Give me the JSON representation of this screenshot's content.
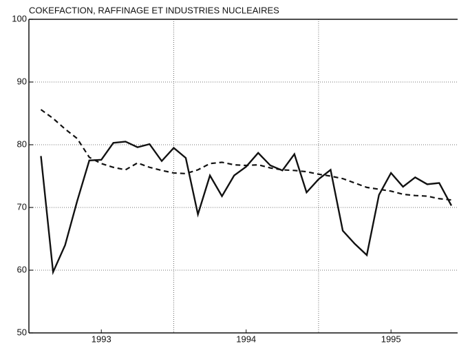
{
  "chart_data": {
    "type": "line",
    "title": "COKEFACTION, RAFFINAGE ET INDUSTRIES NUCLEAIRES",
    "x": [
      1993.083,
      1993.167,
      1993.25,
      1993.333,
      1993.417,
      1993.5,
      1993.583,
      1993.667,
      1993.75,
      1993.833,
      1993.917,
      1994,
      1994.083,
      1994.167,
      1994.25,
      1994.333,
      1994.417,
      1994.5,
      1994.583,
      1994.667,
      1994.75,
      1994.833,
      1994.917,
      1995,
      1995.083,
      1995.167,
      1995.25,
      1995.333,
      1995.417,
      1995.5,
      1995.583,
      1995.667,
      1995.75,
      1995.833,
      1995.917
    ],
    "series": [
      {
        "color": "#111111",
        "dash": false,
        "values": [
          78.2,
          59.7,
          64,
          71,
          77.5,
          77.6,
          80.3,
          80.5,
          79.6,
          80.1,
          77.4,
          79.5,
          77.9,
          68.9,
          75.1,
          71.8,
          75.1,
          76.5,
          78.7,
          76.7,
          75.9,
          78.5,
          72.4,
          74.5,
          76,
          66.3,
          64.2,
          62.4,
          72,
          75.5,
          73.3,
          74.8,
          73.7,
          73.9,
          70.3
        ]
      },
      {
        "color": "#111111",
        "dash": true,
        "values": [
          85.6,
          84.2,
          82.5,
          81,
          78,
          77,
          76.4,
          76,
          77.1,
          76.4,
          75.9,
          75.5,
          75.4,
          76,
          77,
          77.2,
          76.8,
          76.7,
          76.8,
          76.3,
          76,
          75.9,
          75.7,
          75.3,
          75,
          74.6,
          73.9,
          73.2,
          72.9,
          72.6,
          72.1,
          71.9,
          71.8,
          71.4,
          71.2
        ]
      }
    ],
    "xlim": [
      1993,
      1995.96
    ],
    "xticks": [
      {
        "value": 1993.5,
        "label": "1993"
      },
      {
        "value": 1994.5,
        "label": "1994"
      },
      {
        "value": 1995.5,
        "label": "1995"
      }
    ],
    "xgrid": [
      1994,
      1995
    ],
    "ylim": [
      50,
      100
    ],
    "yticks": [
      50,
      60,
      70,
      80,
      90,
      100
    ],
    "grid": true
  }
}
